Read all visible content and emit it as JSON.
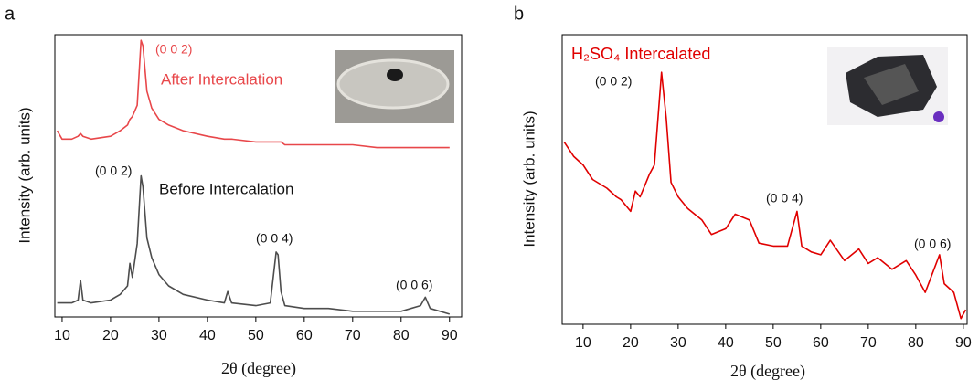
{
  "chart_data": [
    {
      "type": "line",
      "panel": "a",
      "xlabel": "2θ (degree)",
      "ylabel": "Intensity (arb. units)",
      "xlim": [
        8.5,
        92.5
      ],
      "ylim": [
        0,
        100
      ],
      "xticks": [
        10,
        20,
        30,
        40,
        50,
        60,
        70,
        80,
        90
      ],
      "x": [
        9,
        10,
        12,
        13.3,
        13.8,
        14.3,
        16,
        20,
        22,
        23.5,
        24,
        24.5,
        25.5,
        26.3,
        26.7,
        27.5,
        28.5,
        30,
        32,
        35,
        40,
        43.5,
        44.2,
        45,
        50,
        53,
        54.2,
        54.6,
        55.2,
        56,
        60,
        65,
        70,
        75,
        80,
        84,
        85,
        86,
        90
      ],
      "series": [
        {
          "name": "After Intercalation",
          "color": "#e8474a",
          "values": [
            66,
            63,
            63,
            64,
            65,
            64,
            63,
            64,
            66,
            68,
            70,
            71,
            75,
            98,
            96,
            80,
            74,
            70,
            68,
            66,
            64,
            63,
            63,
            63,
            62,
            62,
            62,
            62,
            62,
            61,
            61,
            61,
            61,
            60,
            60,
            60,
            60,
            60,
            60
          ]
        },
        {
          "name": "Before Intercalation",
          "color": "#4d4d4d",
          "values": [
            5,
            5,
            5,
            6,
            13,
            6,
            5,
            6,
            8,
            11,
            19,
            14,
            26,
            50,
            46,
            28,
            21,
            15,
            11,
            8,
            6,
            5,
            9,
            5,
            4,
            5,
            23,
            22,
            9,
            4,
            3,
            3,
            2,
            2,
            2,
            4,
            7,
            3,
            1
          ]
        }
      ],
      "annotations": [
        "(0 0 2)",
        "(0 0 2)",
        "(0 0 4)",
        "(0 0 6)"
      ]
    },
    {
      "type": "line",
      "panel": "b",
      "xlabel": "2θ (degree)",
      "ylabel": "Intensity (arb. units)",
      "xlim": [
        5.6,
        90.8
      ],
      "ylim": [
        0,
        100
      ],
      "xticks": [
        10,
        20,
        30,
        40,
        50,
        60,
        70,
        80,
        90
      ],
      "x": [
        6,
        8,
        10,
        12,
        15,
        17,
        18,
        20,
        21,
        22,
        24,
        25,
        26.5,
        27.5,
        28.5,
        30,
        32,
        35,
        37,
        40,
        42,
        45,
        47,
        50,
        53,
        55,
        56,
        58,
        60,
        62,
        65,
        68,
        70,
        72,
        75,
        78,
        80,
        82,
        85,
        86,
        88,
        89.5,
        90.5
      ],
      "series": [
        {
          "name": "H₂SO₄ Intercalated",
          "color": "#e00000",
          "values": [
            63,
            58,
            55,
            50,
            47,
            44,
            43,
            39,
            46,
            44,
            52,
            55,
            87,
            71,
            49,
            44,
            40,
            36,
            31,
            33,
            38,
            36,
            28,
            27,
            27,
            39,
            27,
            25,
            24,
            29,
            22,
            26,
            21,
            23,
            19,
            22,
            17,
            11,
            24,
            14,
            11,
            2,
            5
          ]
        }
      ],
      "annotations": [
        "(0 0 2)",
        "(0 0 4)",
        "(0 0 6)"
      ]
    }
  ]
}
